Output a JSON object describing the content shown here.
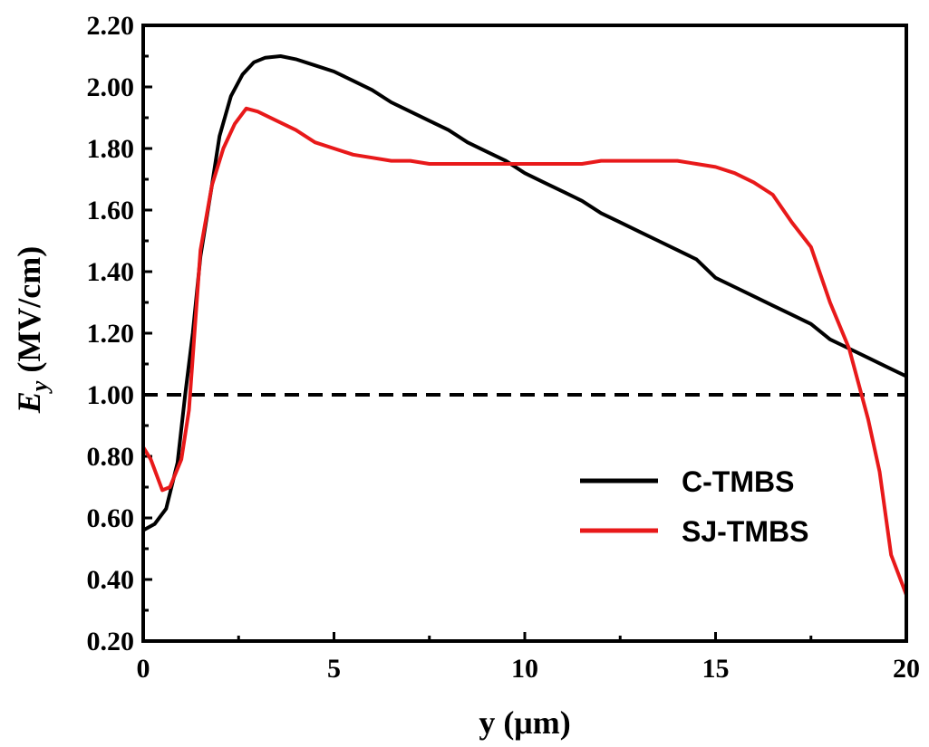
{
  "chart_data": {
    "type": "line",
    "title": "",
    "xlabel": "y (μm)",
    "ylabel_main": "E",
    "ylabel_sub": "y",
    "ylabel_unit": " (MV/cm)",
    "xlim": [
      0,
      20
    ],
    "ylim": [
      0.2,
      2.2
    ],
    "xticks": [
      0,
      5,
      10,
      15,
      20
    ],
    "xtick_labels": [
      "0",
      "5",
      "10",
      "15",
      "20"
    ],
    "yticks": [
      0.2,
      0.4,
      0.6,
      0.8,
      1.0,
      1.2,
      1.4,
      1.6,
      1.8,
      2.0,
      2.2
    ],
    "ytick_labels": [
      "0.20",
      "0.40",
      "0.60",
      "0.80",
      "1.00",
      "1.20",
      "1.40",
      "1.60",
      "1.80",
      "2.00",
      "2.20"
    ],
    "grid": false,
    "legend_position": "bottom-right",
    "reference_line": {
      "y": 1.0,
      "style": "dashed",
      "color": "#000000"
    },
    "series": [
      {
        "name": "C-TMBS",
        "color": "#000000",
        "x": [
          0,
          0.3,
          0.6,
          0.9,
          1.1,
          1.3,
          1.5,
          1.8,
          2.0,
          2.3,
          2.6,
          2.9,
          3.2,
          3.6,
          4.0,
          4.5,
          5.0,
          5.5,
          6.0,
          6.5,
          7.0,
          7.5,
          8.0,
          8.5,
          9.0,
          9.5,
          10.0,
          10.5,
          11.0,
          11.5,
          12.0,
          12.5,
          13.0,
          13.5,
          14.0,
          14.5,
          15.0,
          15.5,
          16.0,
          16.5,
          17.0,
          17.5,
          18.0,
          18.5,
          19.0,
          19.5,
          20.0
        ],
        "values": [
          0.56,
          0.58,
          0.63,
          0.78,
          1.0,
          1.2,
          1.45,
          1.68,
          1.84,
          1.97,
          2.04,
          2.08,
          2.095,
          2.1,
          2.09,
          2.07,
          2.05,
          2.02,
          1.99,
          1.95,
          1.92,
          1.89,
          1.86,
          1.82,
          1.79,
          1.76,
          1.72,
          1.69,
          1.66,
          1.63,
          1.59,
          1.56,
          1.53,
          1.5,
          1.47,
          1.44,
          1.38,
          1.35,
          1.32,
          1.29,
          1.26,
          1.23,
          1.18,
          1.15,
          1.12,
          1.09,
          1.06
        ]
      },
      {
        "name": "SJ-TMBS",
        "color": "#e8191a",
        "x": [
          0,
          0.2,
          0.5,
          0.7,
          1.0,
          1.2,
          1.5,
          1.8,
          2.1,
          2.4,
          2.7,
          3.0,
          3.5,
          4.0,
          4.5,
          5.0,
          5.5,
          6.0,
          6.5,
          7.0,
          7.5,
          8.0,
          9.0,
          10.0,
          11.0,
          11.5,
          12.0,
          13.0,
          14.0,
          14.5,
          15.0,
          15.5,
          16.0,
          16.5,
          17.0,
          17.5,
          18.0,
          18.5,
          19.0,
          19.3,
          19.6,
          20.0
        ],
        "values": [
          0.83,
          0.79,
          0.69,
          0.7,
          0.79,
          0.95,
          1.47,
          1.68,
          1.8,
          1.88,
          1.93,
          1.92,
          1.89,
          1.86,
          1.82,
          1.8,
          1.78,
          1.77,
          1.76,
          1.76,
          1.75,
          1.75,
          1.75,
          1.75,
          1.75,
          1.75,
          1.76,
          1.76,
          1.76,
          1.75,
          1.74,
          1.72,
          1.69,
          1.65,
          1.56,
          1.48,
          1.3,
          1.15,
          0.92,
          0.75,
          0.48,
          0.35
        ]
      }
    ]
  }
}
